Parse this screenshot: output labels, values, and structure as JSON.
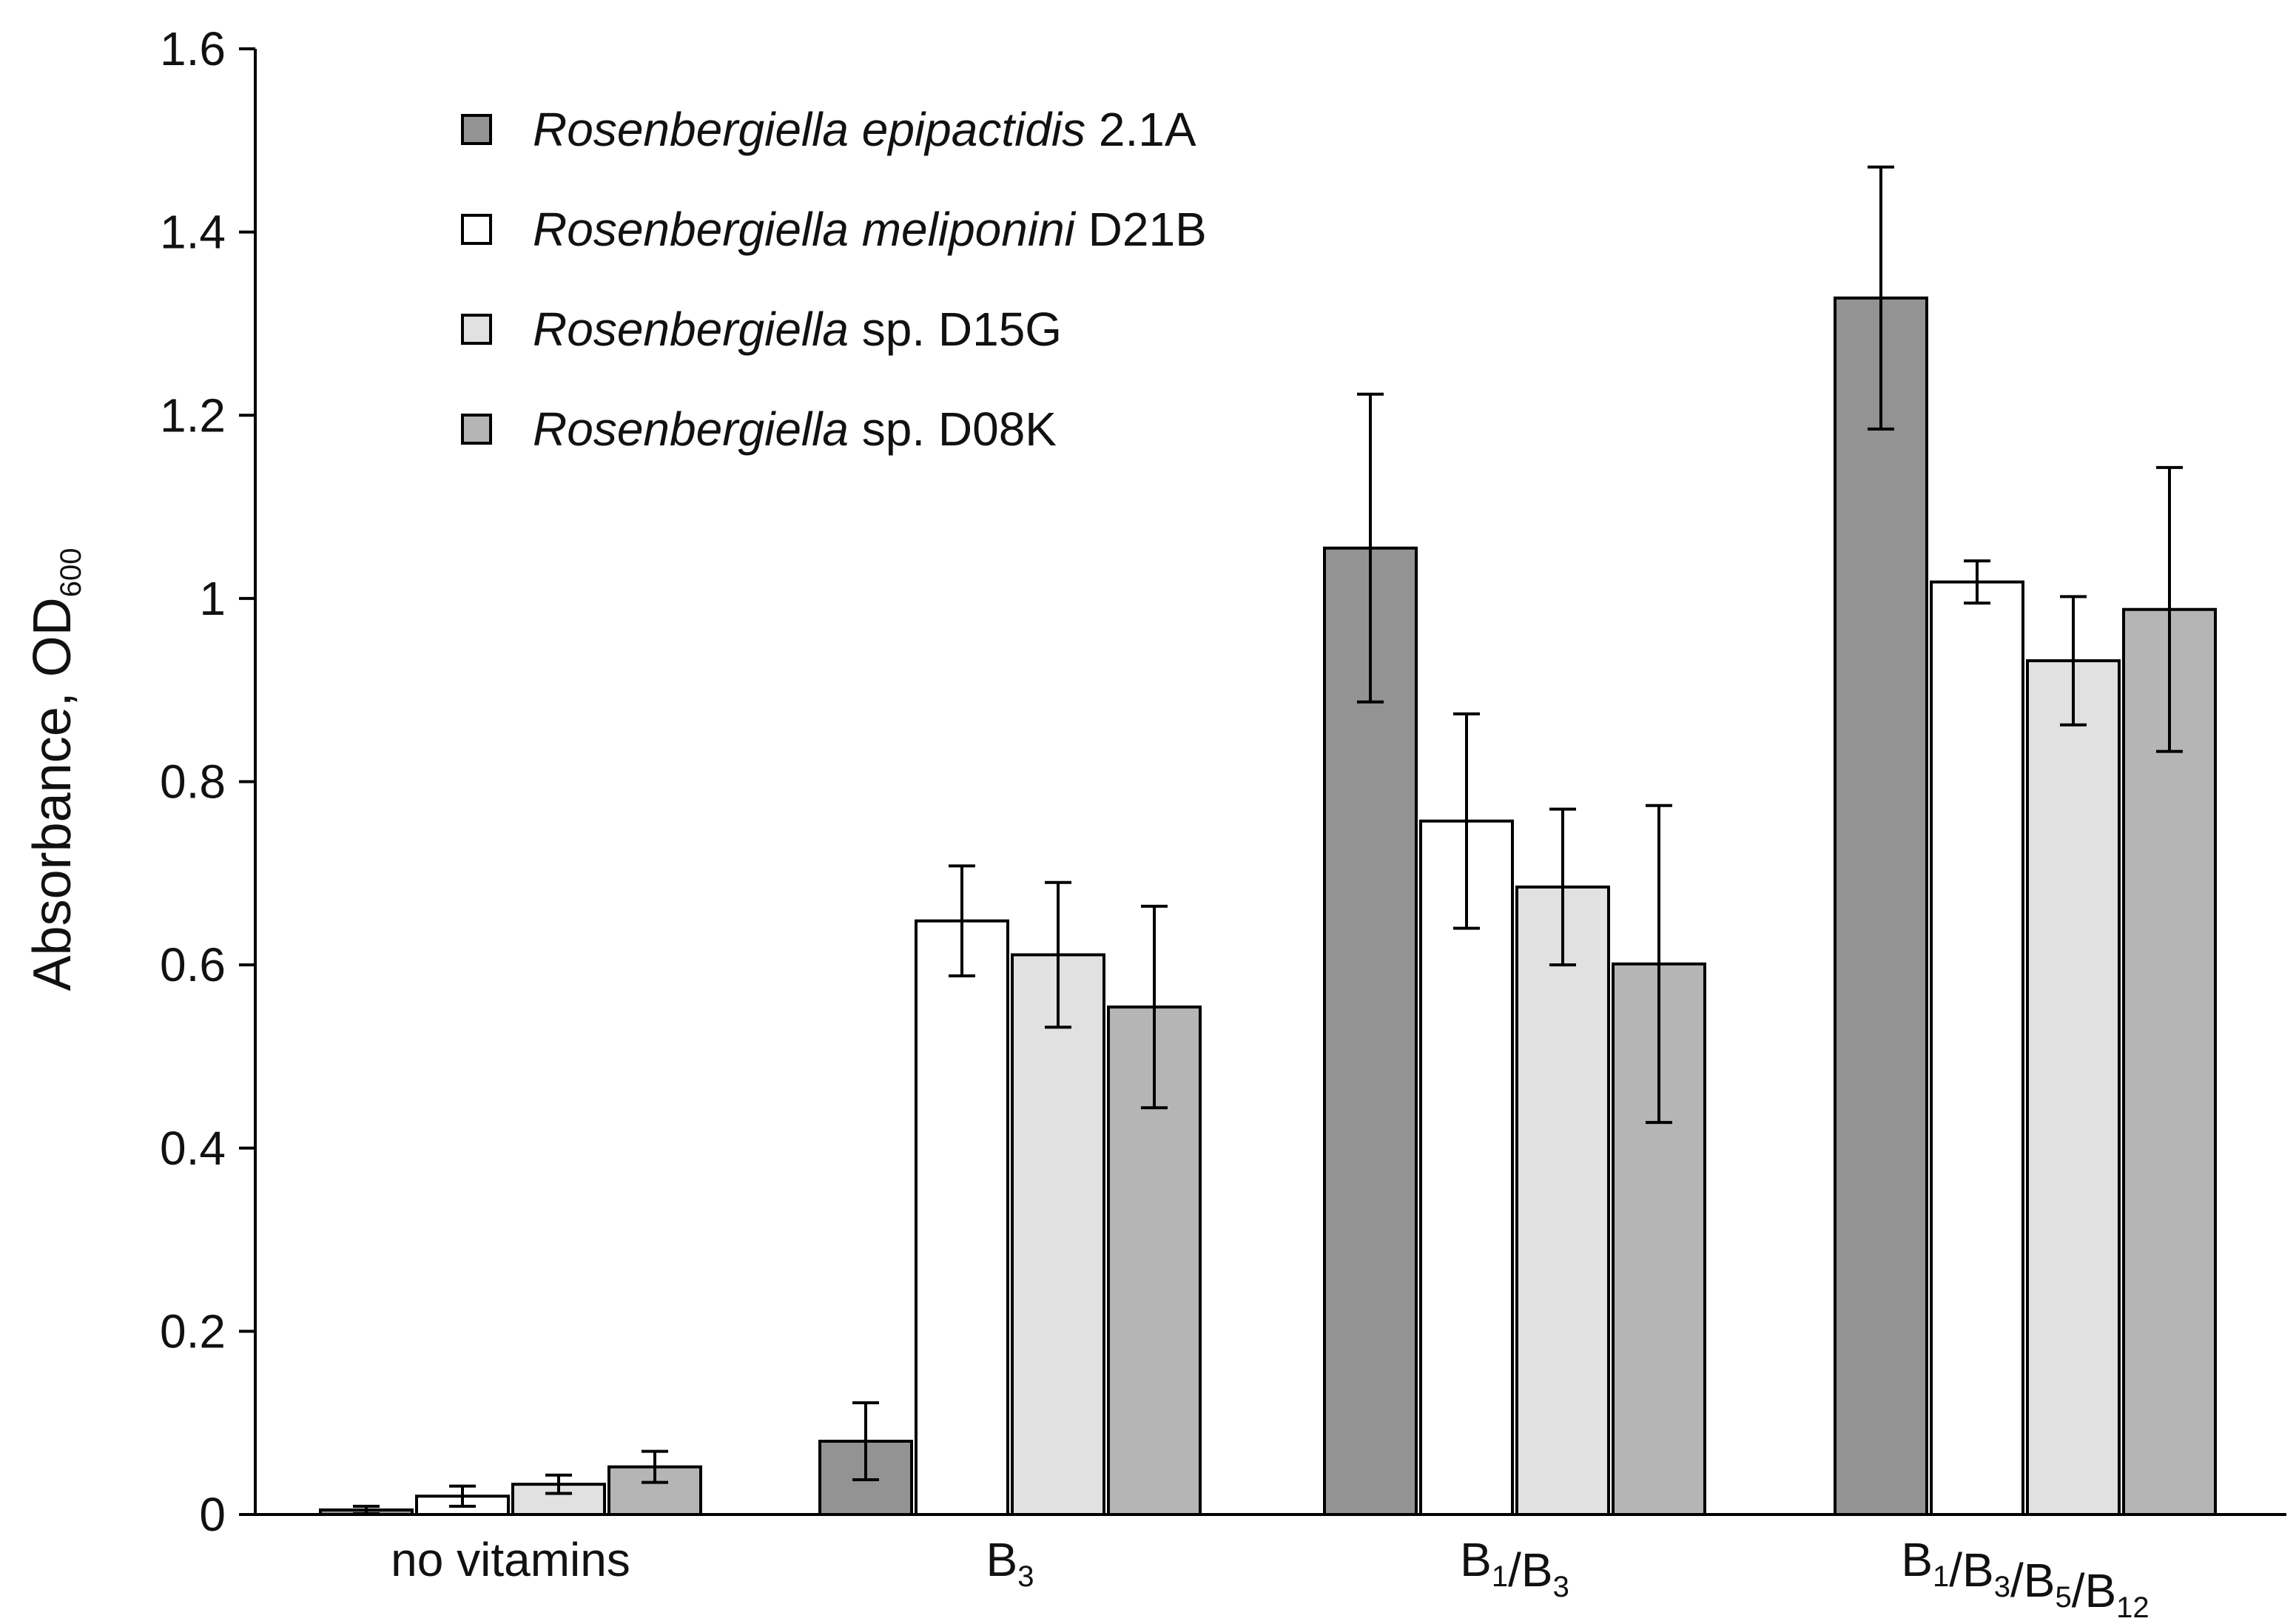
{
  "chart_data": {
    "type": "bar",
    "title": "",
    "xlabel": "",
    "ylabel": "Absorbance, OD",
    "ylabel_subscript": "600",
    "ylim": [
      0,
      1.6
    ],
    "yticks": [
      "0",
      "0.2",
      "0.4",
      "0.6",
      "0.8",
      "1",
      "1.2",
      "1.4",
      "1.6"
    ],
    "categories": [
      {
        "parts": [
          {
            "t": "no vitamins",
            "sub": ""
          }
        ]
      },
      {
        "parts": [
          {
            "t": "B",
            "sub": "3"
          }
        ]
      },
      {
        "parts": [
          {
            "t": "B",
            "sub": "1"
          },
          {
            "t": "/B",
            "sub": "3"
          }
        ]
      },
      {
        "parts": [
          {
            "t": "B",
            "sub": "1"
          },
          {
            "t": "/B",
            "sub": "3"
          },
          {
            "t": "/B",
            "sub": "5"
          },
          {
            "t": "/B",
            "sub": "12"
          }
        ]
      }
    ],
    "series": [
      {
        "name_italic": "Rosenbergiella epipactidis",
        "name_rest": " 2.1A",
        "color": "#939393",
        "values": [
          0.005,
          0.08,
          1.055,
          1.328
        ],
        "errors": [
          0.004,
          0.042,
          0.168,
          0.143
        ]
      },
      {
        "name_italic": "Rosenbergiella meliponini",
        "name_rest": " D21B",
        "color": "#ffffff",
        "values": [
          0.02,
          0.648,
          0.757,
          1.018
        ],
        "errors": [
          0.011,
          0.06,
          0.117,
          0.023
        ]
      },
      {
        "name_italic": "Rosenbergiella",
        "name_rest": " sp. D15G",
        "color": "#e1e1e1",
        "values": [
          0.033,
          0.611,
          0.685,
          0.932
        ],
        "errors": [
          0.01,
          0.079,
          0.085,
          0.07
        ]
      },
      {
        "name_italic": "Rosenbergiella",
        "name_rest": " sp. D08K",
        "color": "#b5b5b5",
        "values": [
          0.052,
          0.554,
          0.601,
          0.988
        ],
        "errors": [
          0.017,
          0.11,
          0.173,
          0.155
        ]
      }
    ],
    "legend_position": "top-left"
  }
}
